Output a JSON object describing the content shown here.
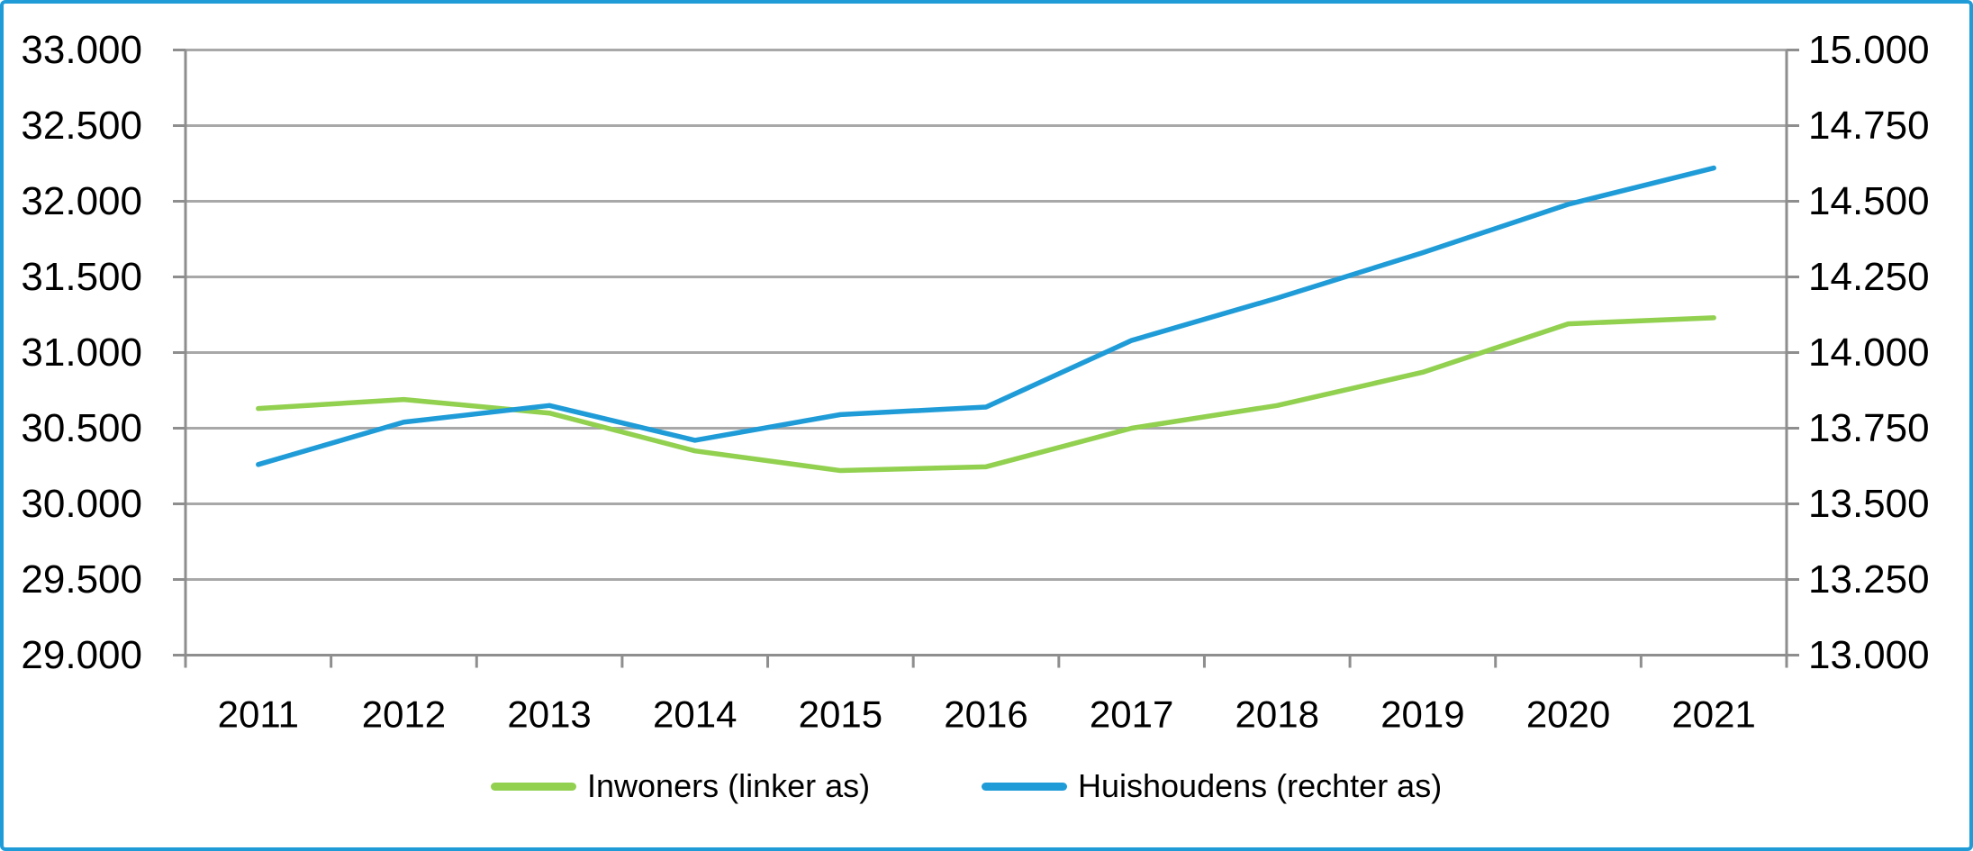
{
  "chart_data": {
    "type": "line",
    "categories": [
      "2011",
      "2012",
      "2013",
      "2014",
      "2015",
      "2016",
      "2017",
      "2018",
      "2019",
      "2020",
      "2021"
    ],
    "series": [
      {
        "name": "Inwoners (linker as)",
        "axis": "left",
        "color": "#92D050",
        "values": [
          30630,
          30690,
          30600,
          30350,
          30220,
          30245,
          30500,
          30650,
          30870,
          31190,
          31230
        ]
      },
      {
        "name": "Huishoudens (rechter as)",
        "axis": "right",
        "color": "#1F9CD8",
        "values": [
          13630,
          13770,
          13825,
          13710,
          13795,
          13820,
          14040,
          14180,
          14330,
          14490,
          14610
        ]
      }
    ],
    "left_axis": {
      "min": 29000,
      "max": 33000,
      "step": 500,
      "tick_labels_top_to_bottom": [
        "33.000",
        "32.500",
        "32.000",
        "31.500",
        "31.000",
        "30.500",
        "30.000",
        "29.500",
        "29.000"
      ]
    },
    "right_axis": {
      "min": 13000,
      "max": 15000,
      "step": 250,
      "tick_labels_top_to_bottom": [
        "15.000",
        "14.750",
        "14.500",
        "14.250",
        "14.000",
        "13.750",
        "13.500",
        "13.250",
        "13.000"
      ]
    },
    "title": "",
    "xlabel": "",
    "ylabel": "",
    "grid": true,
    "legend_position": "bottom"
  },
  "legend": {
    "items": [
      {
        "label": "Inwoners (linker as)",
        "color": "#92D050"
      },
      {
        "label": "Huishoudens (rechter as)",
        "color": "#1F9CD8"
      }
    ]
  },
  "styles": {
    "border_color": "#1F9CD8",
    "gridline_color": "#A8A8A8",
    "axis_color": "#8E8E8E",
    "text_color": "#000000",
    "background": "#FFFFFF"
  }
}
